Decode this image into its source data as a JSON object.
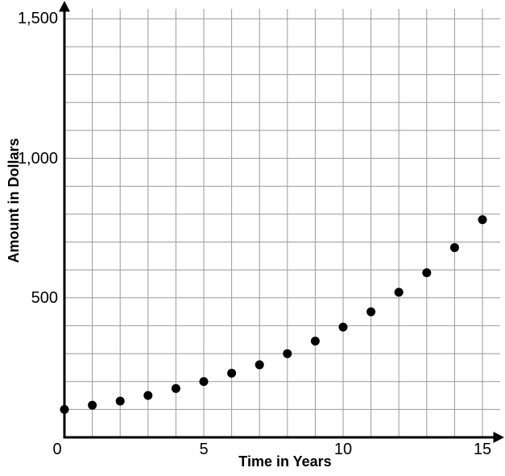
{
  "chart_data": {
    "type": "scatter",
    "title": "",
    "xlabel": "Time in Years",
    "ylabel": "Amount in Dollars",
    "x": [
      0,
      1,
      2,
      3,
      4,
      5,
      6,
      7,
      8,
      9,
      10,
      11,
      12,
      13,
      14,
      15
    ],
    "series": [
      {
        "name": "amount-in-dollars",
        "values": [
          100,
          115,
          130,
          150,
          175,
          200,
          230,
          260,
          300,
          345,
          395,
          450,
          520,
          590,
          680,
          780
        ]
      }
    ],
    "x_ticks": [
      {
        "value": 0,
        "label": "0"
      },
      {
        "value": 5,
        "label": "5"
      },
      {
        "value": 10,
        "label": "10"
      },
      {
        "value": 15,
        "label": "15"
      }
    ],
    "y_ticks": [
      {
        "value": 500,
        "label": "500"
      },
      {
        "value": 1000,
        "label": "1,000"
      },
      {
        "value": 1500,
        "label": "1,500"
      }
    ],
    "xlim": [
      0,
      15
    ],
    "ylim": [
      0,
      1500
    ],
    "grid": {
      "show": true,
      "x_step": 1,
      "y_step": 100
    },
    "legend": null,
    "colors": {
      "point": "#000000",
      "axis": "#000000",
      "grid": "#999999",
      "text": "#000000",
      "background": "#ffffff"
    }
  }
}
